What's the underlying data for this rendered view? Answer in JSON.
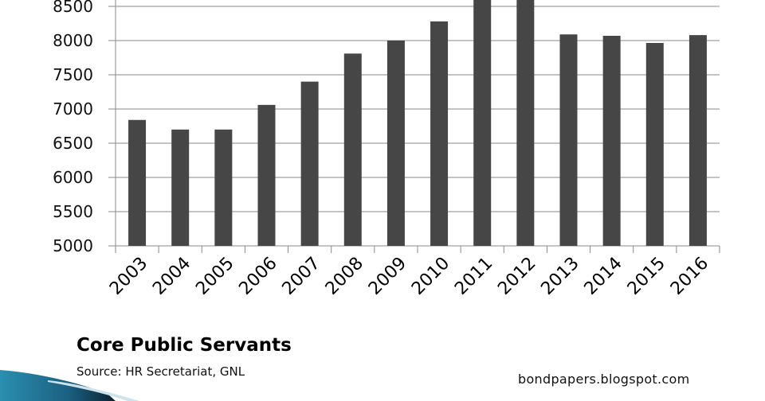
{
  "chart_data": {
    "type": "bar",
    "title": "Core Public Servants",
    "subtitle": "Source:  HR Secretariat, GNL",
    "credit": "bondpapers.blogspot.com",
    "xlabel": "",
    "ylabel": "",
    "categories": [
      "2003",
      "2004",
      "2005",
      "2006",
      "2007",
      "2008",
      "2009",
      "2010",
      "2011",
      "2012",
      "2013",
      "2014",
      "2015",
      "2016"
    ],
    "values": [
      6840,
      6700,
      6700,
      7060,
      7400,
      7810,
      8000,
      8280,
      8700,
      8700,
      8090,
      8070,
      7965,
      8080
    ],
    "ylim": [
      5000,
      8620
    ],
    "yticks": [
      "5000",
      "5500",
      "6000",
      "6500",
      "7000",
      "7500",
      "8000",
      "8500"
    ],
    "grid": true,
    "legend": "none",
    "bar_color": "#464646",
    "grid_color": "#8a8a8a"
  }
}
